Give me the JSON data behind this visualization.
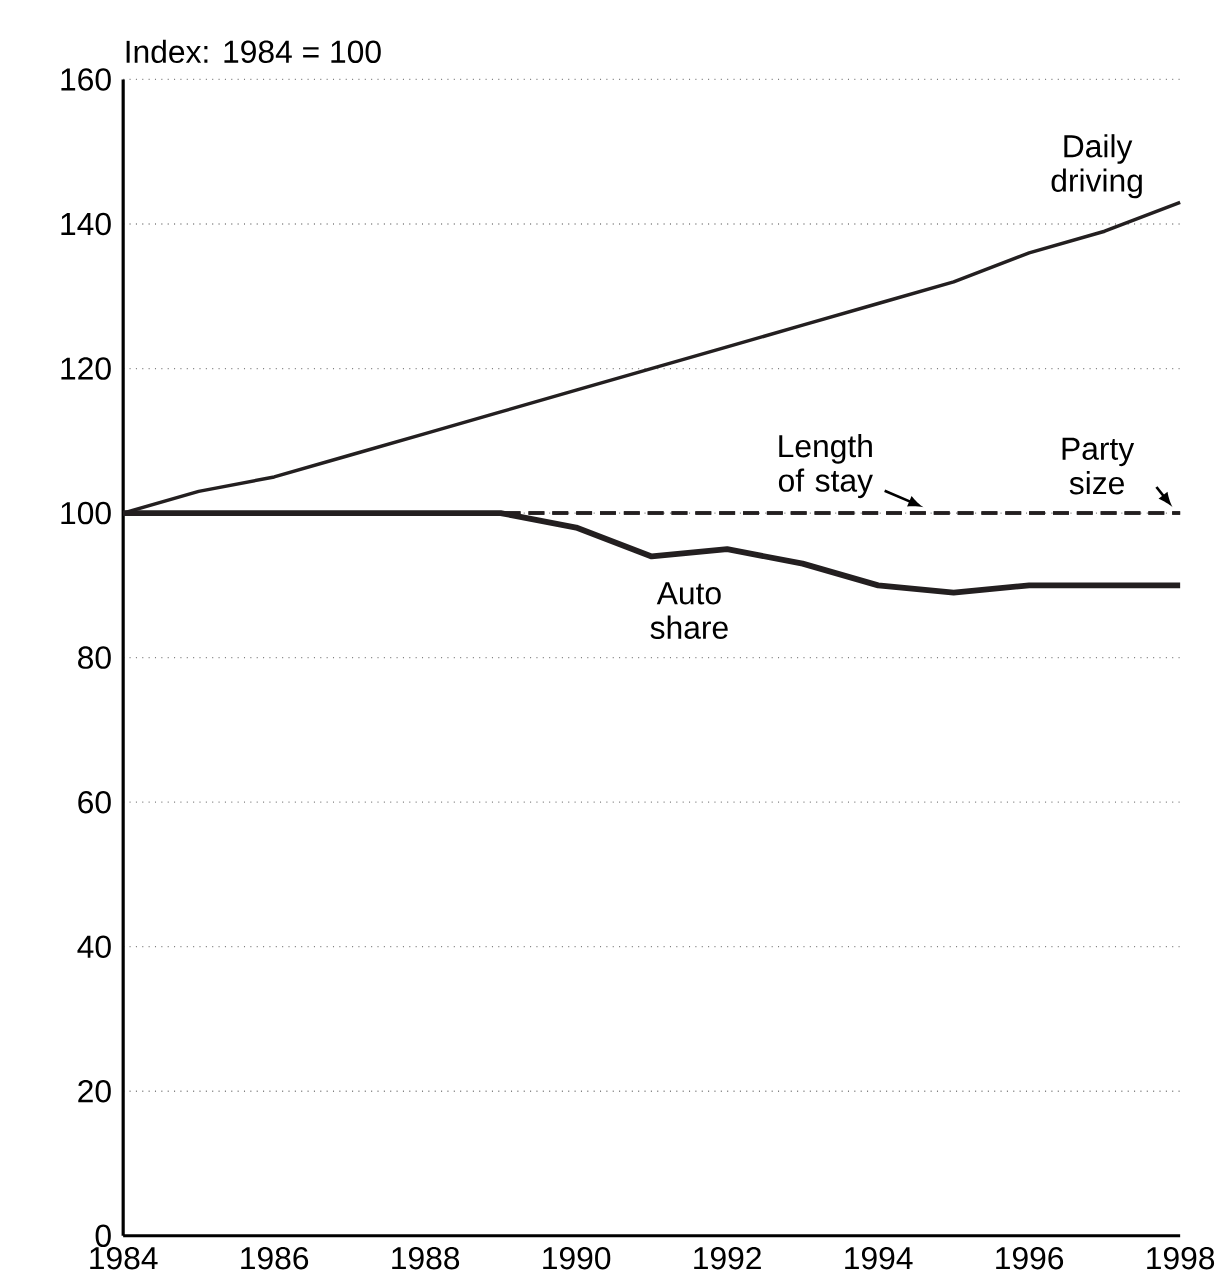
{
  "chart_data": {
    "type": "line",
    "ylabel": "Index: 1984 = 100",
    "x": [
      1984,
      1985,
      1986,
      1987,
      1988,
      1989,
      1990,
      1991,
      1992,
      1993,
      1994,
      1995,
      1996,
      1997,
      1998
    ],
    "xlim": [
      1984,
      1998
    ],
    "xticks": [
      1984,
      1986,
      1988,
      1990,
      1992,
      1994,
      1996,
      1998
    ],
    "ylim": [
      0,
      160
    ],
    "yticks": [
      0,
      20,
      40,
      60,
      80,
      100,
      120,
      140,
      160
    ],
    "grid": "y",
    "legend": false,
    "marker": "none",
    "series": [
      {
        "name": "Daily driving",
        "color": "#231f20",
        "line_style": "solid",
        "values": [
          100,
          103,
          105,
          108,
          111,
          114,
          117,
          120,
          123,
          126,
          129,
          132,
          136,
          139,
          143
        ]
      },
      {
        "name": "Length of stay",
        "color": "#231f20",
        "line_style": "dashed",
        "values": [
          100,
          100,
          100,
          100,
          100,
          100,
          100,
          100,
          100,
          100,
          100,
          100,
          100,
          100,
          100
        ]
      },
      {
        "name": "Party size",
        "color": "#231f20",
        "line_style": "dashed",
        "values": [
          100,
          100,
          100,
          100,
          100,
          100,
          100,
          100,
          100,
          100,
          100,
          100,
          100,
          100,
          100
        ]
      },
      {
        "name": "Auto share",
        "color": "#231f20",
        "line_style": "solid",
        "values": [
          100,
          100,
          100,
          100,
          100,
          100,
          98,
          94,
          95,
          93,
          90,
          89,
          90,
          90,
          90
        ]
      }
    ]
  }
}
